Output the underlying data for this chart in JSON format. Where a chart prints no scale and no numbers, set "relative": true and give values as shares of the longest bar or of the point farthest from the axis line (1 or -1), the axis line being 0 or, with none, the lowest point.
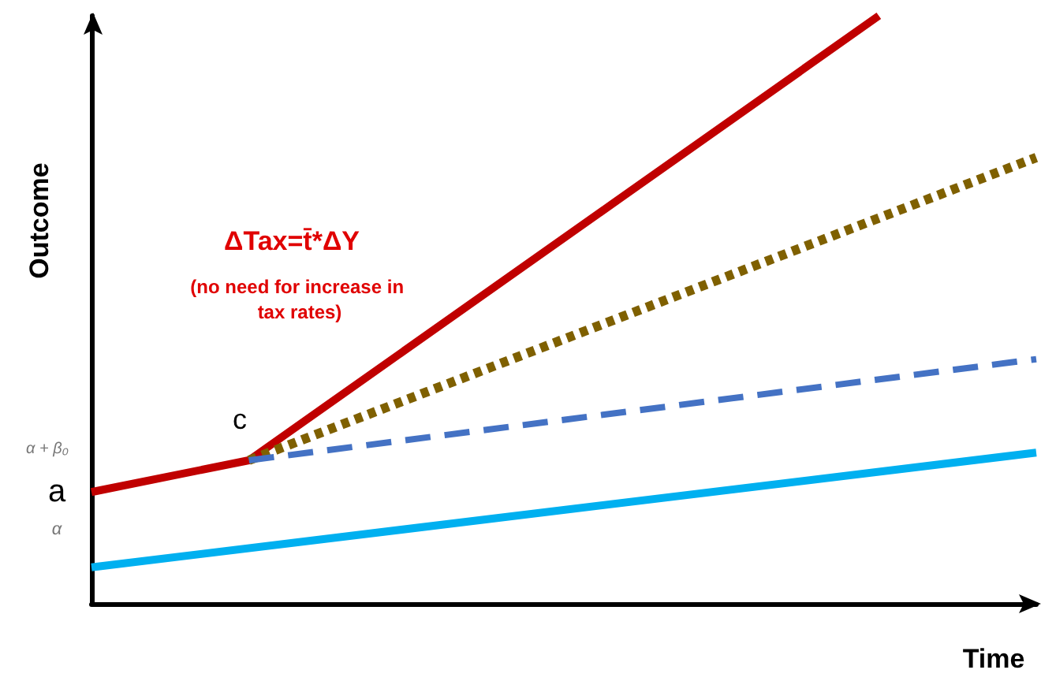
{
  "chart_data": {
    "type": "line",
    "relative": true,
    "xlabel": "Time",
    "ylabel": "Outcome",
    "categories": [
      null,
      null,
      null,
      null,
      null,
      null,
      null,
      null,
      null,
      null,
      null,
      null,
      null
    ],
    "series": [
      {
        "color": "#c00000",
        "line_style": "solid",
        "values": [
          0.19,
          null,
          0.244,
          null,
          null,
          null,
          null,
          null,
          null,
          null,
          1,
          null,
          null
        ]
      },
      {
        "color": "#7f6000",
        "line_style": "dotted",
        "values": [
          null,
          null,
          0.244,
          null,
          null,
          null,
          null,
          null,
          null,
          null,
          null,
          null,
          0.759
        ]
      },
      {
        "color": "#4472c4",
        "line_style": "dashed",
        "values": [
          null,
          null,
          0.244,
          null,
          null,
          null,
          null,
          null,
          null,
          null,
          null,
          null,
          0.416
        ]
      },
      {
        "color": "#00b0f0",
        "line_style": "solid",
        "values": [
          0.062,
          null,
          null,
          null,
          null,
          null,
          null,
          null,
          null,
          null,
          null,
          null,
          0.257
        ]
      }
    ],
    "annotations": [
      "ΔTax=t̄*ΔY",
      "(no need for increase in tax rates)",
      "c",
      "a",
      "α + β₀",
      "α"
    ],
    "grid": false,
    "marker": "none"
  }
}
